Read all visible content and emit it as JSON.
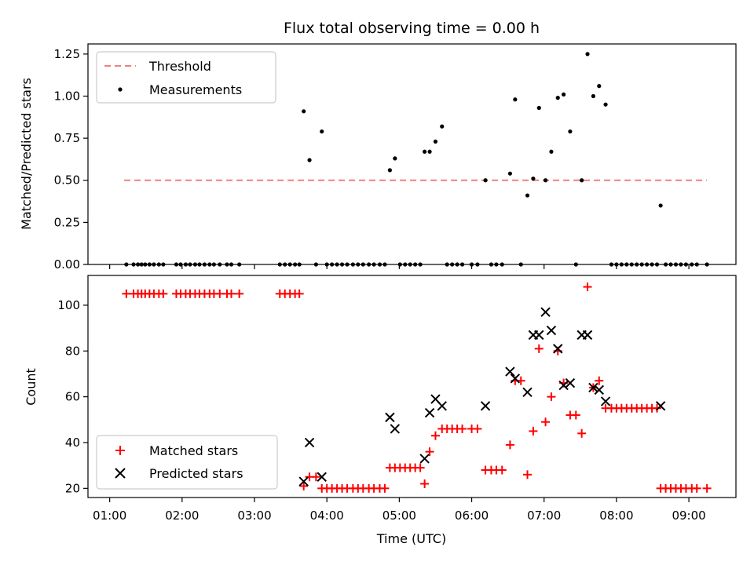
{
  "chart_data": [
    {
      "type": "scatter",
      "title": "Flux total observing time = 0.00 h",
      "ylabel": "Matched/Predicted stars",
      "xlabel": "",
      "xlim": [
        0.7,
        9.65
      ],
      "ylim": [
        0,
        1.31
      ],
      "yticks": [
        0.0,
        0.25,
        0.5,
        0.75,
        1.0,
        1.25
      ],
      "ytick_labels": [
        "0.00",
        "0.25",
        "0.50",
        "0.75",
        "1.00",
        "1.25"
      ],
      "xticks": [
        1,
        2,
        3,
        4,
        5,
        6,
        7,
        8,
        9
      ],
      "legend": {
        "location": "upper-left",
        "entries": [
          "Threshold",
          "Measurements"
        ]
      },
      "threshold": {
        "name": "Threshold",
        "value": 0.5,
        "x": [
          1.2,
          9.25
        ],
        "color": "#f08080"
      },
      "series": [
        {
          "name": "Measurements",
          "color": "#000000",
          "points": [
            [
              1.23,
              0
            ],
            [
              1.33,
              0
            ],
            [
              1.39,
              0
            ],
            [
              1.44,
              0
            ],
            [
              1.49,
              0
            ],
            [
              1.55,
              0
            ],
            [
              1.61,
              0
            ],
            [
              1.68,
              0
            ],
            [
              1.74,
              0
            ],
            [
              1.92,
              0
            ],
            [
              1.98,
              0
            ],
            [
              2.05,
              0
            ],
            [
              2.11,
              0
            ],
            [
              2.18,
              0
            ],
            [
              2.24,
              0
            ],
            [
              2.31,
              0
            ],
            [
              2.38,
              0
            ],
            [
              2.44,
              0
            ],
            [
              2.52,
              0
            ],
            [
              2.62,
              0
            ],
            [
              2.68,
              0
            ],
            [
              2.79,
              0
            ],
            [
              3.35,
              0
            ],
            [
              3.42,
              0
            ],
            [
              3.49,
              0
            ],
            [
              3.56,
              0
            ],
            [
              3.62,
              0
            ],
            [
              3.68,
              0.91
            ],
            [
              3.76,
              0.62
            ],
            [
              3.85,
              0
            ],
            [
              3.93,
              0.79
            ],
            [
              4.0,
              0
            ],
            [
              4.07,
              0
            ],
            [
              4.14,
              0
            ],
            [
              4.21,
              0
            ],
            [
              4.28,
              0
            ],
            [
              4.36,
              0
            ],
            [
              4.43,
              0
            ],
            [
              4.5,
              0
            ],
            [
              4.58,
              0
            ],
            [
              4.65,
              0
            ],
            [
              4.73,
              0
            ],
            [
              4.8,
              0
            ],
            [
              4.87,
              0.56
            ],
            [
              4.94,
              0.63
            ],
            [
              5.01,
              0
            ],
            [
              5.08,
              0
            ],
            [
              5.15,
              0
            ],
            [
              5.22,
              0
            ],
            [
              5.29,
              0
            ],
            [
              5.35,
              0.67
            ],
            [
              5.42,
              0.67
            ],
            [
              5.5,
              0.73
            ],
            [
              5.59,
              0.82
            ],
            [
              5.66,
              0
            ],
            [
              5.73,
              0
            ],
            [
              5.8,
              0
            ],
            [
              5.87,
              0
            ],
            [
              6.0,
              0
            ],
            [
              6.08,
              0
            ],
            [
              6.19,
              0.5
            ],
            [
              6.27,
              0
            ],
            [
              6.34,
              0
            ],
            [
              6.42,
              0
            ],
            [
              6.53,
              0.54
            ],
            [
              6.6,
              0.98
            ],
            [
              6.68,
              0
            ],
            [
              6.77,
              0.41
            ],
            [
              6.85,
              0.51
            ],
            [
              6.93,
              0.93
            ],
            [
              7.02,
              0.5
            ],
            [
              7.1,
              0.67
            ],
            [
              7.19,
              0.99
            ],
            [
              7.27,
              1.01
            ],
            [
              7.36,
              0.79
            ],
            [
              7.44,
              0
            ],
            [
              7.52,
              0.5
            ],
            [
              7.6,
              1.25
            ],
            [
              7.68,
              1.0
            ],
            [
              7.76,
              1.06
            ],
            [
              7.85,
              0.95
            ],
            [
              7.93,
              0
            ],
            [
              8.0,
              0
            ],
            [
              8.07,
              0
            ],
            [
              8.14,
              0
            ],
            [
              8.21,
              0
            ],
            [
              8.28,
              0
            ],
            [
              8.35,
              0
            ],
            [
              8.42,
              0
            ],
            [
              8.49,
              0
            ],
            [
              8.56,
              0
            ],
            [
              8.61,
              0.35
            ],
            [
              8.68,
              0
            ],
            [
              8.75,
              0
            ],
            [
              8.82,
              0
            ],
            [
              8.89,
              0
            ],
            [
              8.96,
              0
            ],
            [
              9.04,
              0
            ],
            [
              9.11,
              0
            ],
            [
              9.25,
              0
            ]
          ]
        }
      ]
    },
    {
      "type": "scatter",
      "title": "",
      "ylabel": "Count",
      "xlabel": "Time (UTC)",
      "xlim": [
        0.7,
        9.65
      ],
      "ylim": [
        16,
        113
      ],
      "yticks": [
        20,
        40,
        60,
        80,
        100
      ],
      "ytick_labels": [
        "20",
        "40",
        "60",
        "80",
        "100"
      ],
      "xticks": [
        1,
        2,
        3,
        4,
        5,
        6,
        7,
        8,
        9
      ],
      "xtick_labels": [
        "01:00",
        "02:00",
        "03:00",
        "04:00",
        "05:00",
        "06:00",
        "07:00",
        "08:00",
        "09:00"
      ],
      "legend": {
        "location": "lower-left",
        "entries": [
          "Matched stars",
          "Predicted stars"
        ]
      },
      "series": [
        {
          "name": "Matched stars",
          "marker": "plus",
          "color": "#ff0000",
          "points": [
            [
              1.23,
              105
            ],
            [
              1.33,
              105
            ],
            [
              1.39,
              105
            ],
            [
              1.44,
              105
            ],
            [
              1.49,
              105
            ],
            [
              1.55,
              105
            ],
            [
              1.61,
              105
            ],
            [
              1.68,
              105
            ],
            [
              1.74,
              105
            ],
            [
              1.92,
              105
            ],
            [
              1.98,
              105
            ],
            [
              2.05,
              105
            ],
            [
              2.11,
              105
            ],
            [
              2.18,
              105
            ],
            [
              2.24,
              105
            ],
            [
              2.31,
              105
            ],
            [
              2.38,
              105
            ],
            [
              2.44,
              105
            ],
            [
              2.52,
              105
            ],
            [
              2.62,
              105
            ],
            [
              2.68,
              105
            ],
            [
              2.79,
              105
            ],
            [
              3.35,
              105
            ],
            [
              3.42,
              105
            ],
            [
              3.49,
              105
            ],
            [
              3.56,
              105
            ],
            [
              3.62,
              105
            ],
            [
              3.68,
              21
            ],
            [
              3.76,
              25
            ],
            [
              3.85,
              25
            ],
            [
              3.93,
              20
            ],
            [
              4.0,
              20
            ],
            [
              4.07,
              20
            ],
            [
              4.14,
              20
            ],
            [
              4.21,
              20
            ],
            [
              4.28,
              20
            ],
            [
              4.36,
              20
            ],
            [
              4.43,
              20
            ],
            [
              4.5,
              20
            ],
            [
              4.58,
              20
            ],
            [
              4.65,
              20
            ],
            [
              4.73,
              20
            ],
            [
              4.8,
              20
            ],
            [
              4.87,
              29
            ],
            [
              4.94,
              29
            ],
            [
              5.01,
              29
            ],
            [
              5.08,
              29
            ],
            [
              5.15,
              29
            ],
            [
              5.22,
              29
            ],
            [
              5.29,
              29
            ],
            [
              5.35,
              22
            ],
            [
              5.42,
              36
            ],
            [
              5.5,
              43
            ],
            [
              5.59,
              46
            ],
            [
              5.66,
              46
            ],
            [
              5.73,
              46
            ],
            [
              5.8,
              46
            ],
            [
              5.87,
              46
            ],
            [
              6.0,
              46
            ],
            [
              6.08,
              46
            ],
            [
              6.19,
              28
            ],
            [
              6.27,
              28
            ],
            [
              6.34,
              28
            ],
            [
              6.42,
              28
            ],
            [
              6.53,
              39
            ],
            [
              6.6,
              67
            ],
            [
              6.68,
              67
            ],
            [
              6.77,
              26
            ],
            [
              6.85,
              45
            ],
            [
              6.93,
              81
            ],
            [
              7.02,
              49
            ],
            [
              7.1,
              60
            ],
            [
              7.19,
              80
            ],
            [
              7.27,
              66
            ],
            [
              7.36,
              52
            ],
            [
              7.44,
              52
            ],
            [
              7.52,
              44
            ],
            [
              7.6,
              108
            ],
            [
              7.68,
              64
            ],
            [
              7.76,
              67
            ],
            [
              7.85,
              55
            ],
            [
              7.93,
              55
            ],
            [
              8.0,
              55
            ],
            [
              8.07,
              55
            ],
            [
              8.14,
              55
            ],
            [
              8.21,
              55
            ],
            [
              8.28,
              55
            ],
            [
              8.35,
              55
            ],
            [
              8.42,
              55
            ],
            [
              8.49,
              55
            ],
            [
              8.56,
              55
            ],
            [
              8.61,
              20
            ],
            [
              8.68,
              20
            ],
            [
              8.75,
              20
            ],
            [
              8.82,
              20
            ],
            [
              8.89,
              20
            ],
            [
              8.96,
              20
            ],
            [
              9.04,
              20
            ],
            [
              9.11,
              20
            ],
            [
              9.25,
              20
            ]
          ]
        },
        {
          "name": "Predicted stars",
          "marker": "x",
          "color": "#000000",
          "points": [
            [
              3.68,
              23
            ],
            [
              3.76,
              40
            ],
            [
              3.93,
              25
            ],
            [
              4.87,
              51
            ],
            [
              4.94,
              46
            ],
            [
              5.35,
              33
            ],
            [
              5.42,
              53
            ],
            [
              5.5,
              59
            ],
            [
              5.59,
              56
            ],
            [
              6.19,
              56
            ],
            [
              6.53,
              71
            ],
            [
              6.6,
              68
            ],
            [
              6.77,
              62
            ],
            [
              6.85,
              87
            ],
            [
              6.93,
              87
            ],
            [
              7.02,
              97
            ],
            [
              7.1,
              89
            ],
            [
              7.19,
              81
            ],
            [
              7.27,
              65
            ],
            [
              7.36,
              66
            ],
            [
              7.52,
              87
            ],
            [
              7.6,
              87
            ],
            [
              7.68,
              64
            ],
            [
              7.76,
              63
            ],
            [
              7.85,
              58
            ],
            [
              8.61,
              56
            ]
          ]
        }
      ]
    }
  ]
}
